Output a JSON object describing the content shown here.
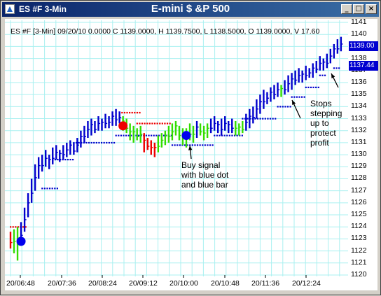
{
  "window": {
    "left_label": "ES #F 3-Min",
    "title": "E-mini $ &P 500",
    "controls": [
      "_",
      "□",
      "×"
    ]
  },
  "info_line": "ES #F [3-Min] 09/20/10  0.0000  C 1139.0000, H 1139.7500, L 1138.5000, O 1139.0000, V 17.60",
  "price_tags": [
    "1139.00",
    "1137.44"
  ],
  "annotations": {
    "buy": [
      "Buy signal",
      "with blue dot",
      "and blue bar"
    ],
    "stops": [
      "Stops",
      "stepping",
      "up to",
      "protect",
      "profit"
    ]
  },
  "colors": {
    "up": "#0000cc",
    "down": "#ee0000",
    "neutral": "#33dd00",
    "stop": "#0000cc",
    "grid": "#aaf0f0"
  },
  "chart_data": {
    "type": "bar",
    "subtype": "ohlc",
    "ylim": [
      1120,
      1141
    ],
    "yticks": [
      1120,
      1121,
      1122,
      1123,
      1124,
      1125,
      1126,
      1127,
      1128,
      1129,
      1130,
      1131,
      1132,
      1133,
      1134,
      1135,
      1136,
      1137,
      1138,
      1139,
      1140,
      1141
    ],
    "xticks": [
      "20/06:48",
      "20/07:36",
      "20/08:24",
      "20/09:12",
      "20/10:00",
      "20/10:48",
      "20/11:36",
      "20/12:24"
    ],
    "grid": true,
    "bars": [
      [
        1123.6,
        1122.2,
        "r"
      ],
      [
        1123.8,
        1121.8,
        "g"
      ],
      [
        1124.0,
        1121.2,
        "g"
      ],
      [
        1124.4,
        1122.6,
        "b"
      ],
      [
        1125.6,
        1123.6,
        "b"
      ],
      [
        1126.8,
        1124.8,
        "b"
      ],
      [
        1128.0,
        1126.0,
        "b"
      ],
      [
        1129.2,
        1127.0,
        "b"
      ],
      [
        1129.8,
        1128.0,
        "b"
      ],
      [
        1130.0,
        1128.6,
        "b"
      ],
      [
        1130.4,
        1129.0,
        "b"
      ],
      [
        1130.0,
        1128.8,
        "b"
      ],
      [
        1130.6,
        1129.2,
        "b"
      ],
      [
        1130.8,
        1129.6,
        "b"
      ],
      [
        1130.4,
        1129.4,
        "b"
      ],
      [
        1130.8,
        1129.6,
        "b"
      ],
      [
        1131.0,
        1129.8,
        "b"
      ],
      [
        1131.2,
        1130.0,
        "b"
      ],
      [
        1131.0,
        1130.0,
        "b"
      ],
      [
        1131.4,
        1130.2,
        "b"
      ],
      [
        1132.0,
        1130.6,
        "b"
      ],
      [
        1132.4,
        1131.0,
        "b"
      ],
      [
        1132.8,
        1131.4,
        "b"
      ],
      [
        1133.0,
        1131.6,
        "b"
      ],
      [
        1132.8,
        1131.8,
        "b"
      ],
      [
        1133.2,
        1132.0,
        "b"
      ],
      [
        1133.0,
        1132.0,
        "b"
      ],
      [
        1133.4,
        1132.2,
        "b"
      ],
      [
        1133.2,
        1132.2,
        "b"
      ],
      [
        1133.6,
        1132.4,
        "b"
      ],
      [
        1133.8,
        1132.4,
        "b"
      ],
      [
        1133.6,
        1132.6,
        "b"
      ],
      [
        1133.2,
        1132.0,
        "g"
      ],
      [
        1133.0,
        1131.8,
        "g"
      ],
      [
        1132.6,
        1131.2,
        "g"
      ],
      [
        1132.4,
        1131.0,
        "g"
      ],
      [
        1132.2,
        1131.2,
        "g"
      ],
      [
        1132.4,
        1131.0,
        "g"
      ],
      [
        1131.8,
        1130.2,
        "r"
      ],
      [
        1131.4,
        1130.4,
        "r"
      ],
      [
        1131.2,
        1130.0,
        "r"
      ],
      [
        1131.0,
        1129.8,
        "r"
      ],
      [
        1131.6,
        1130.2,
        "g"
      ],
      [
        1131.8,
        1130.6,
        "g"
      ],
      [
        1132.0,
        1130.8,
        "g"
      ],
      [
        1132.4,
        1131.0,
        "g"
      ],
      [
        1132.6,
        1131.2,
        "g"
      ],
      [
        1132.8,
        1131.6,
        "g"
      ],
      [
        1132.4,
        1131.2,
        "g"
      ],
      [
        1132.2,
        1130.8,
        "g"
      ],
      [
        1132.2,
        1130.6,
        "g"
      ],
      [
        1132.6,
        1131.2,
        "g"
      ],
      [
        1132.4,
        1131.0,
        "g"
      ],
      [
        1132.8,
        1131.4,
        "b"
      ],
      [
        1132.6,
        1131.6,
        "g"
      ],
      [
        1132.4,
        1131.2,
        "g"
      ],
      [
        1132.6,
        1131.4,
        "g"
      ],
      [
        1133.0,
        1131.8,
        "b"
      ],
      [
        1133.2,
        1132.0,
        "b"
      ],
      [
        1132.8,
        1131.8,
        "b"
      ],
      [
        1133.0,
        1131.6,
        "b"
      ],
      [
        1133.2,
        1132.0,
        "b"
      ],
      [
        1132.8,
        1131.8,
        "b"
      ],
      [
        1133.0,
        1131.8,
        "b"
      ],
      [
        1132.8,
        1131.6,
        "g"
      ],
      [
        1132.6,
        1131.6,
        "g"
      ],
      [
        1132.8,
        1131.8,
        "g"
      ],
      [
        1133.4,
        1132.0,
        "b"
      ],
      [
        1133.8,
        1132.2,
        "b"
      ],
      [
        1134.0,
        1132.6,
        "b"
      ],
      [
        1134.6,
        1133.0,
        "b"
      ],
      [
        1135.0,
        1133.4,
        "b"
      ],
      [
        1135.4,
        1133.8,
        "b"
      ],
      [
        1135.2,
        1134.2,
        "b"
      ],
      [
        1135.6,
        1134.4,
        "b"
      ],
      [
        1135.8,
        1134.6,
        "b"
      ],
      [
        1136.0,
        1134.8,
        "b"
      ],
      [
        1135.8,
        1134.8,
        "g"
      ],
      [
        1136.2,
        1135.0,
        "b"
      ],
      [
        1136.6,
        1135.2,
        "b"
      ],
      [
        1136.8,
        1135.4,
        "b"
      ],
      [
        1137.0,
        1135.8,
        "b"
      ],
      [
        1137.2,
        1136.0,
        "b"
      ],
      [
        1137.0,
        1136.0,
        "b"
      ],
      [
        1137.4,
        1136.2,
        "b"
      ],
      [
        1137.2,
        1136.4,
        "b"
      ],
      [
        1137.6,
        1136.4,
        "b"
      ],
      [
        1137.8,
        1136.8,
        "b"
      ],
      [
        1138.2,
        1137.0,
        "b"
      ],
      [
        1138.0,
        1137.0,
        "b"
      ],
      [
        1138.4,
        1137.2,
        "b"
      ],
      [
        1138.8,
        1137.6,
        "b"
      ],
      [
        1139.2,
        1138.0,
        "b"
      ],
      [
        1139.6,
        1138.4,
        "b"
      ],
      [
        1139.8,
        1138.6,
        "b"
      ]
    ],
    "red_stop_segments": [
      [
        0,
        5,
        1124
      ],
      [
        31,
        37,
        1133.5
      ],
      [
        36,
        46,
        1132.6
      ]
    ],
    "blue_stop_segments": [
      [
        9,
        14,
        1127.2
      ],
      [
        12,
        18,
        1129.6
      ],
      [
        18,
        30,
        1131.0
      ],
      [
        30,
        46,
        1131.6
      ],
      [
        46,
        58,
        1130.8
      ],
      [
        58,
        66,
        1131.6
      ],
      [
        66,
        76,
        1133.0
      ],
      [
        76,
        80,
        1134.0
      ],
      [
        80,
        84,
        1134.8
      ],
      [
        84,
        88,
        1135.6
      ],
      [
        88,
        90,
        1136.6
      ],
      [
        92,
        94,
        1137.2
      ]
    ],
    "signal_dots": [
      [
        3,
        1122.8,
        "blue"
      ],
      [
        32,
        1132.4,
        "red"
      ],
      [
        50,
        1131.6,
        "blue"
      ]
    ]
  }
}
